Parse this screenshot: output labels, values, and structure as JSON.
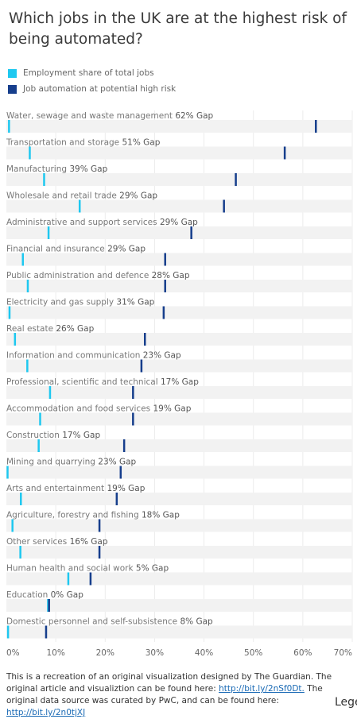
{
  "title": "Which jobs in the UK are at the highest risk of being automated?",
  "legend": [
    {
      "label": "Employment share of total jobs",
      "color": "#1ec8f0"
    },
    {
      "label": "Job automation at potential high risk",
      "color": "#163e8c"
    }
  ],
  "chart_data": {
    "type": "bar",
    "xlim": [
      0,
      70
    ],
    "x_ticks": [
      "0%",
      "10%",
      "20%",
      "30%",
      "40%",
      "50%",
      "60%",
      "70%"
    ],
    "grid": true,
    "series": [
      {
        "name": "Employment share of total jobs",
        "color": "#1ec8f0"
      },
      {
        "name": "Job automation at potential high risk",
        "color": "#163e8c"
      }
    ],
    "rows": [
      {
        "label": "Water, sewage and waste management",
        "gap": "62% Gap",
        "employment": 0.5,
        "automation": 62.6
      },
      {
        "label": "Transportation and storage",
        "gap": "51% Gap",
        "employment": 4.7,
        "automation": 56.3
      },
      {
        "label": "Manufacturing",
        "gap": "39% Gap",
        "employment": 7.6,
        "automation": 46.4
      },
      {
        "label": "Wholesale and retail trade",
        "gap": "29% Gap",
        "employment": 14.8,
        "automation": 44.0
      },
      {
        "label": "Administrative and support services",
        "gap": "29% Gap",
        "employment": 8.5,
        "automation": 37.4
      },
      {
        "label": "Financial and insurance",
        "gap": "29% Gap",
        "employment": 3.3,
        "automation": 32.1
      },
      {
        "label": "Public administration and defence",
        "gap": "28% Gap",
        "employment": 4.3,
        "automation": 32.1
      },
      {
        "label": "Electricity and gas supply",
        "gap": "31% Gap",
        "employment": 0.6,
        "automation": 31.8
      },
      {
        "label": "Real estate",
        "gap": "26% Gap",
        "employment": 1.7,
        "automation": 28.0
      },
      {
        "label": "Information and communication",
        "gap": "23% Gap",
        "employment": 4.2,
        "automation": 27.3
      },
      {
        "label": "Professional, scientific and technical",
        "gap": "17% Gap",
        "employment": 8.8,
        "automation": 25.6
      },
      {
        "label": "Accommodation and food services",
        "gap": "19% Gap",
        "employment": 6.8,
        "automation": 25.6
      },
      {
        "label": "Construction",
        "gap": "17% Gap",
        "employment": 6.5,
        "automation": 23.8
      },
      {
        "label": "Mining and quarrying",
        "gap": "23% Gap",
        "employment": 0.2,
        "automation": 23.1
      },
      {
        "label": "Arts and entertainment",
        "gap": "19% Gap",
        "employment": 2.9,
        "automation": 22.3
      },
      {
        "label": "Agriculture, forestry and fishing",
        "gap": "18% Gap",
        "employment": 1.2,
        "automation": 18.8
      },
      {
        "label": "Other services",
        "gap": "16% Gap",
        "employment": 2.8,
        "automation": 18.8
      },
      {
        "label": "Human health and social work",
        "gap": "5% Gap",
        "employment": 12.5,
        "automation": 17.0
      },
      {
        "label": "Education",
        "gap": "0% Gap",
        "employment": 8.4,
        "automation": 8.6
      },
      {
        "label": "Domestic personnel and self-subsistence",
        "gap": "8% Gap",
        "employment": 0.3,
        "automation": 8.0
      }
    ]
  },
  "footer": {
    "text1": "This is a recreation of an original visualization designed by The Guardian. The original article and visualiztion can be found here: ",
    "link1": "http://bit.ly/2nSf0Dt.",
    "text2": " The original data source was curated by PwC, and can be found here: ",
    "link2": "http://bit.ly/2n0tjXJ"
  },
  "corner_text": "Lege"
}
